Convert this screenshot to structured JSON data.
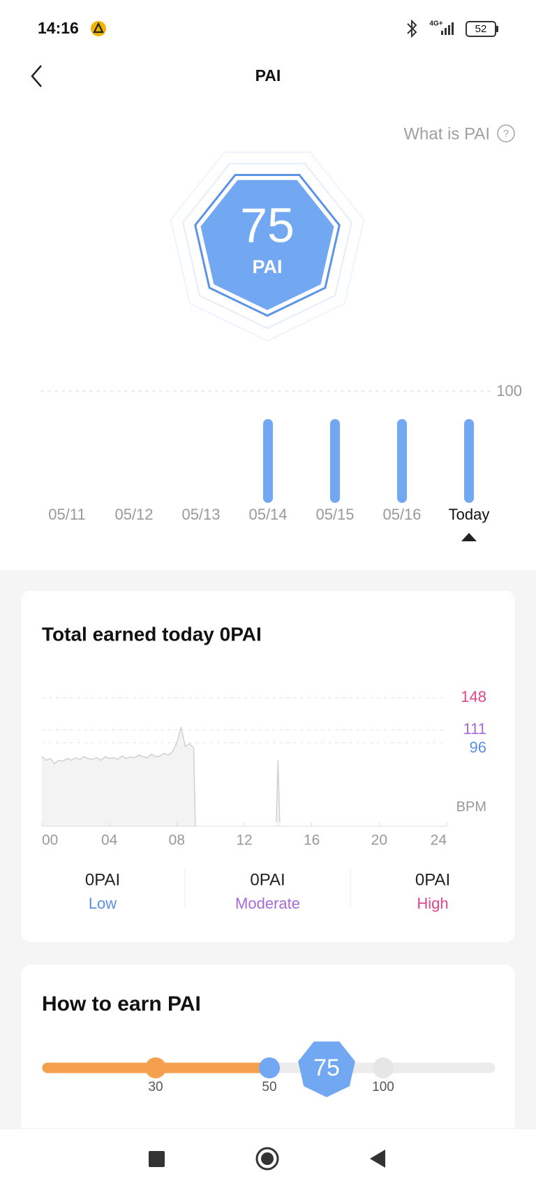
{
  "status_bar": {
    "time": "14:16",
    "network": "4G+",
    "battery": "52"
  },
  "header": {
    "title": "PAI",
    "help_link": "What is PAI"
  },
  "score": {
    "value": 75,
    "unit": "PAI"
  },
  "trend_chart": {
    "type": "bar",
    "categories": [
      "05/11",
      "05/12",
      "05/13",
      "05/14",
      "05/15",
      "05/16",
      "Today"
    ],
    "values": [
      null,
      null,
      null,
      75,
      75,
      75,
      75
    ],
    "color": "#72a7f2",
    "ylim": [
      0,
      100
    ],
    "yticks": [
      100
    ],
    "grid": true
  },
  "today_card": {
    "title": "Total earned today 0PAI",
    "heart_rate_chart": {
      "type": "line",
      "x": [
        0,
        0.25,
        0.5,
        0.75,
        1,
        1.25,
        1.5,
        1.75,
        2,
        2.25,
        2.5,
        2.75,
        3,
        3.25,
        3.5,
        3.75,
        4,
        4.25,
        4.5,
        4.75,
        5,
        5.25,
        5.5,
        5.75,
        6,
        6.25,
        6.5,
        6.75,
        7,
        7.25,
        7.5,
        7.75,
        8,
        8.25,
        8.5,
        8.75,
        9,
        9.1,
        11,
        13.9,
        14,
        14.1
      ],
      "values": [
        80,
        76,
        78,
        72,
        76,
        75,
        78,
        76,
        79,
        77,
        80,
        78,
        77,
        79,
        76,
        80,
        78,
        79,
        77,
        81,
        78,
        80,
        79,
        82,
        80,
        79,
        83,
        80,
        81,
        84,
        82,
        86,
        96,
        114,
        92,
        95,
        90,
        0,
        null,
        5,
        76,
        5
      ],
      "color": "#d0d0d0",
      "xlim": [
        0,
        24
      ],
      "xticks": [
        {
          "value": 0,
          "label": "00"
        },
        {
          "value": 4,
          "label": "04"
        },
        {
          "value": 8,
          "label": "08"
        },
        12,
        16,
        20,
        24
      ],
      "ylim": [
        0,
        150
      ],
      "thresholds": [
        {
          "value": 148,
          "color": "#e0468c"
        },
        {
          "value": 111,
          "color": "#a46bd9"
        },
        {
          "value": 96,
          "color": "#5b8fe0"
        }
      ],
      "unit_label": "BPM"
    },
    "zones": [
      {
        "value": "0PAI",
        "label": "Low",
        "color": "#5b8fe0"
      },
      {
        "value": "0PAI",
        "label": "Moderate",
        "color": "#a46bd9"
      },
      {
        "value": "0PAI",
        "label": "High",
        "color": "#e0468c"
      }
    ]
  },
  "earn_card": {
    "title": "How to earn PAI",
    "scale_labels": [
      "30",
      "50",
      "100"
    ],
    "current": "75"
  }
}
